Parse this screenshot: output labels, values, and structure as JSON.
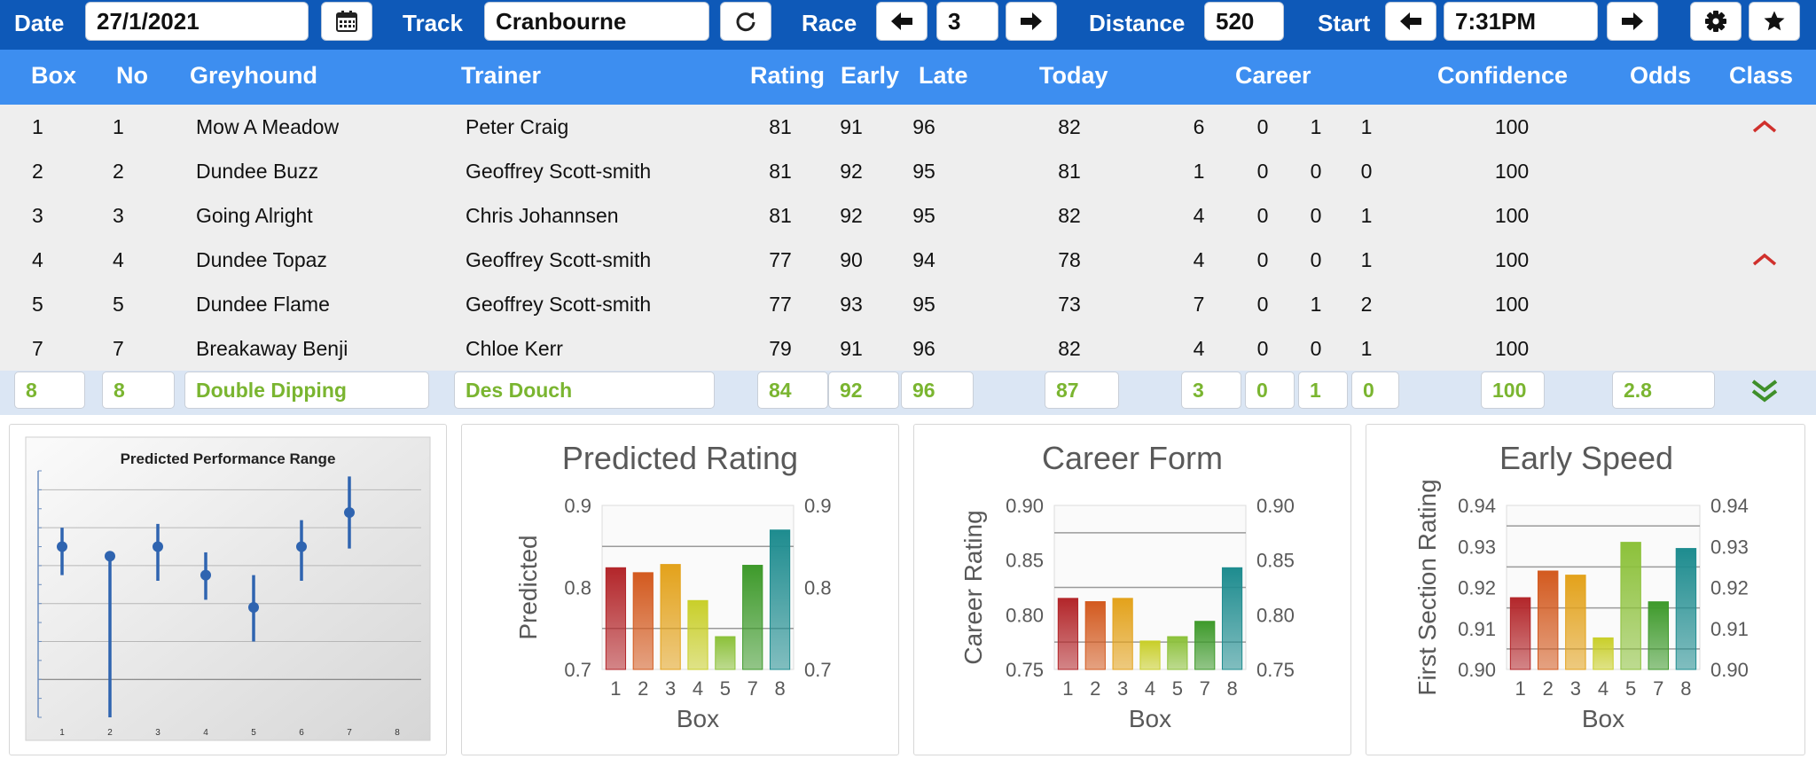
{
  "toolbar": {
    "date_label": "Date",
    "date_value": "27/1/2021",
    "track_label": "Track",
    "track_value": "Cranbourne",
    "race_label": "Race",
    "race_value": "3",
    "distance_label": "Distance",
    "distance_value": "520",
    "start_label": "Start",
    "start_value": "7:31PM",
    "icons": [
      "calendar-icon",
      "refresh-icon",
      "arrow-left-icon",
      "arrow-right-icon",
      "gear-icon",
      "star-icon"
    ]
  },
  "table": {
    "headers": {
      "box": "Box",
      "no": "No",
      "greyhound": "Greyhound",
      "trainer": "Trainer",
      "rating": "Rating",
      "early": "Early",
      "late": "Late",
      "today": "Today",
      "career": "Career",
      "confidence": "Confidence",
      "odds": "Odds",
      "class": "Class"
    },
    "rows": [
      {
        "box": "1",
        "no": "1",
        "greyhound": "Mow A Meadow",
        "trainer": "Peter Craig",
        "rating": "81",
        "early": "91",
        "late": "96",
        "today": "82",
        "career": [
          "6",
          "0",
          "1",
          "1"
        ],
        "confidence": "100",
        "odds": "",
        "class": "up"
      },
      {
        "box": "2",
        "no": "2",
        "greyhound": "Dundee Buzz",
        "trainer": "Geoffrey Scott-smith",
        "rating": "81",
        "early": "92",
        "late": "95",
        "today": "81",
        "career": [
          "1",
          "0",
          "0",
          "0"
        ],
        "confidence": "100",
        "odds": "",
        "class": ""
      },
      {
        "box": "3",
        "no": "3",
        "greyhound": "Going Alright",
        "trainer": "Chris Johannsen",
        "rating": "81",
        "early": "92",
        "late": "95",
        "today": "82",
        "career": [
          "4",
          "0",
          "0",
          "1"
        ],
        "confidence": "100",
        "odds": "",
        "class": ""
      },
      {
        "box": "4",
        "no": "4",
        "greyhound": "Dundee Topaz",
        "trainer": "Geoffrey Scott-smith",
        "rating": "77",
        "early": "90",
        "late": "94",
        "today": "78",
        "career": [
          "4",
          "0",
          "0",
          "1"
        ],
        "confidence": "100",
        "odds": "",
        "class": "up"
      },
      {
        "box": "5",
        "no": "5",
        "greyhound": "Dundee Flame",
        "trainer": "Geoffrey Scott-smith",
        "rating": "77",
        "early": "93",
        "late": "95",
        "today": "73",
        "career": [
          "7",
          "0",
          "1",
          "2"
        ],
        "confidence": "100",
        "odds": "",
        "class": ""
      },
      {
        "box": "7",
        "no": "7",
        "greyhound": "Breakaway Benji",
        "trainer": "Chloe Kerr",
        "rating": "79",
        "early": "91",
        "late": "96",
        "today": "82",
        "career": [
          "4",
          "0",
          "0",
          "1"
        ],
        "confidence": "100",
        "odds": "",
        "class": ""
      }
    ],
    "selected": {
      "box": "8",
      "no": "8",
      "greyhound": "Double Dipping",
      "trainer": "Des Douch",
      "rating": "84",
      "early": "92",
      "late": "96",
      "today": "87",
      "career": [
        "3",
        "0",
        "1",
        "0"
      ],
      "confidence": "100",
      "odds": "2.8",
      "class": "down"
    }
  },
  "colors": {
    "toolbar": "#0e59b8",
    "header": "#3d8ef0",
    "row_bg": "#eeeeee",
    "selected_bg": "#dbe6f4",
    "selected_text": "#7ab530",
    "class_up": "#d0302c",
    "class_down": "#3f8f2a"
  },
  "chart_data": [
    {
      "type": "scatter",
      "title": "Predicted Performance Range",
      "x": [
        "1",
        "2",
        "3",
        "4",
        "5",
        "6",
        "7",
        "8"
      ],
      "points": [
        {
          "x": "1",
          "y": 0.79,
          "low": 0.775,
          "high": 0.8
        },
        {
          "x": "2",
          "y": 0.785,
          "low": 0.7,
          "high": 0.785
        },
        {
          "x": "3",
          "y": 0.79,
          "low": 0.772,
          "high": 0.802
        },
        {
          "x": "4",
          "y": 0.775,
          "low": 0.762,
          "high": 0.787
        },
        {
          "x": "5",
          "y": 0.758,
          "low": 0.74,
          "high": 0.775
        },
        {
          "x": "6",
          "y": 0.79,
          "low": 0.772,
          "high": 0.804
        },
        {
          "x": "7",
          "y": 0.808,
          "low": 0.789,
          "high": 0.827
        }
      ],
      "ylim": [
        0.7,
        0.83
      ],
      "grid": true
    },
    {
      "type": "bar",
      "title": "Predicted Rating",
      "xlabel": "Box",
      "ylabel": "Predicted",
      "categories": [
        "1",
        "2",
        "3",
        "4",
        "5",
        "7",
        "8"
      ],
      "values": [
        0.824,
        0.818,
        0.828,
        0.784,
        0.74,
        0.827,
        0.87
      ],
      "ylim": [
        0.7,
        0.9
      ],
      "yticks": [
        "0.7",
        "0.8",
        "0.9"
      ],
      "grid_lines": [
        0.75,
        0.85
      ],
      "colors": [
        "#b3262a",
        "#d35a1f",
        "#e3a21b",
        "#c9cf2a",
        "#8cc13a",
        "#3e9a2b",
        "#1e8c8f"
      ]
    },
    {
      "type": "bar",
      "title": "Career Form",
      "xlabel": "Box",
      "ylabel": "Career Rating",
      "categories": [
        "1",
        "2",
        "3",
        "4",
        "5",
        "7",
        "8"
      ],
      "values": [
        0.815,
        0.812,
        0.815,
        0.776,
        0.78,
        0.794,
        0.843
      ],
      "ylim": [
        0.75,
        0.9
      ],
      "yticks": [
        "0.75",
        "0.80",
        "0.85",
        "0.90"
      ],
      "grid_lines": [
        0.775,
        0.825,
        0.875
      ],
      "colors": [
        "#b3262a",
        "#d35a1f",
        "#e3a21b",
        "#c9cf2a",
        "#8cc13a",
        "#3e9a2b",
        "#1e8c8f"
      ]
    },
    {
      "type": "bar",
      "title": "Early Speed",
      "xlabel": "Box",
      "ylabel": "First Section Rating",
      "categories": [
        "1",
        "2",
        "3",
        "4",
        "5",
        "7",
        "8"
      ],
      "values": [
        0.9175,
        0.924,
        0.923,
        0.9077,
        0.931,
        0.9165,
        0.9295
      ],
      "ylim": [
        0.9,
        0.94
      ],
      "yticks": [
        "0.90",
        "0.91",
        "0.92",
        "0.93",
        "0.94"
      ],
      "grid_lines": [
        0.905,
        0.915,
        0.925,
        0.935
      ],
      "colors": [
        "#b3262a",
        "#d35a1f",
        "#e3a21b",
        "#c9cf2a",
        "#8cc13a",
        "#3e9a2b",
        "#1e8c8f"
      ]
    }
  ]
}
